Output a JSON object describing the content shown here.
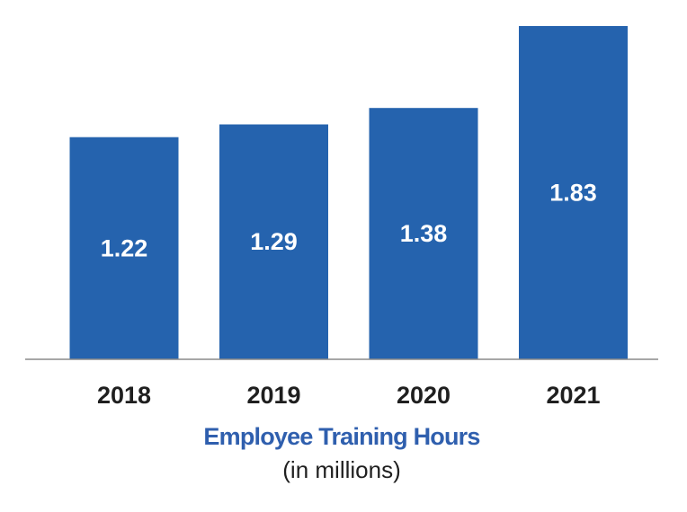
{
  "chart_data": {
    "type": "bar",
    "categories": [
      "2018",
      "2019",
      "2020",
      "2021"
    ],
    "values": [
      1.22,
      1.29,
      1.38,
      1.83
    ],
    "value_labels": [
      "1.22",
      "1.29",
      "1.38",
      "1.83"
    ],
    "title": "Employee Training Hours",
    "subtitle": "(in millions)",
    "xlabel": "",
    "ylabel": "",
    "ylim": [
      0,
      1.83
    ],
    "grid": false,
    "legend": "none",
    "colors": {
      "bar": "#2563ae",
      "bar_label": "#ffffff",
      "axis_line": "#8a8a8a",
      "tick_label": "#1f1f1f",
      "title": "#2f5fae",
      "subtitle": "#1f1f1f"
    }
  }
}
